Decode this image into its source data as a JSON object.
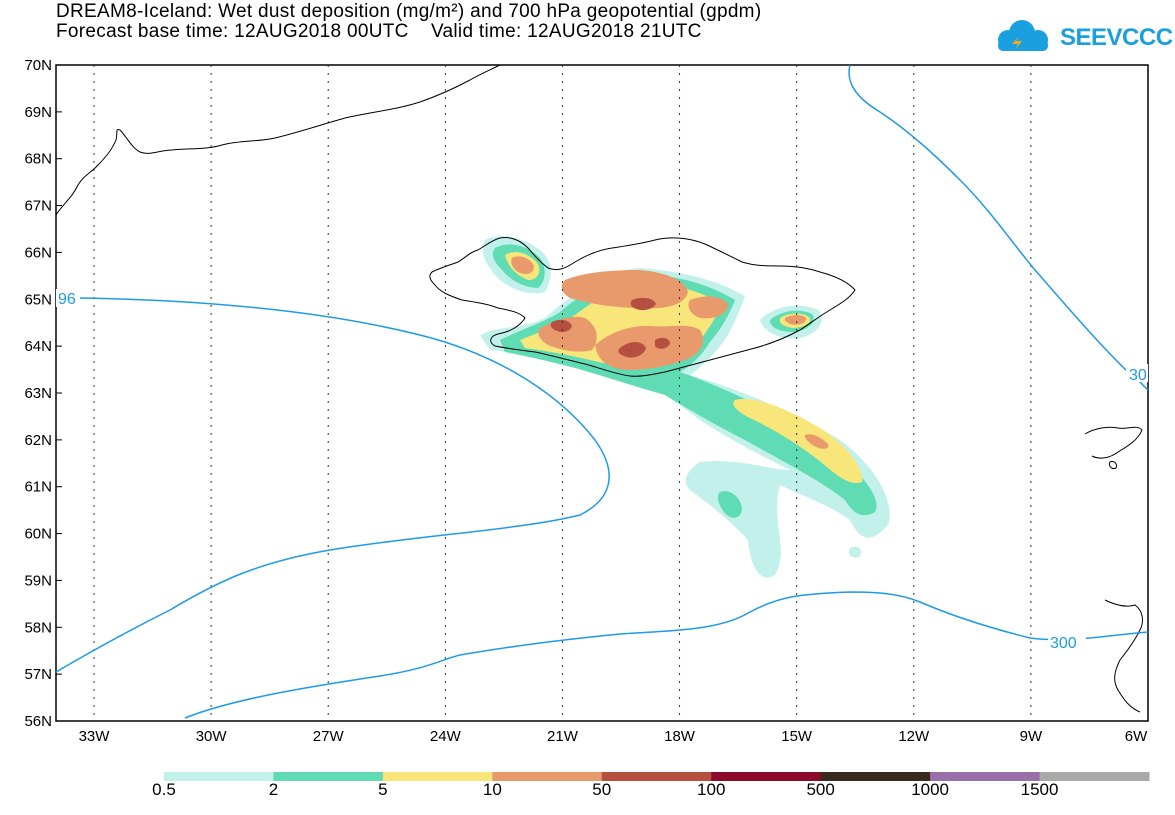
{
  "header": {
    "title_line1": "DREAM8-Iceland: Wet dust deposition (mg/m²) and 700 hPa geopotential (gpdm)",
    "title_line2": "Forecast base time: 12AUG2018 00UTC    Valid time: 12AUG2018 21UTC"
  },
  "logo": {
    "text": "SEEVCCC",
    "color": "#1aa0e0"
  },
  "axes": {
    "lat_labels": [
      "70N",
      "69N",
      "68N",
      "67N",
      "66N",
      "65N",
      "64N",
      "63N",
      "62N",
      "61N",
      "60N",
      "59N",
      "58N",
      "57N",
      "56N"
    ],
    "lon_labels": [
      "33W",
      "30W",
      "27W",
      "24W",
      "21W",
      "18W",
      "15W",
      "12W",
      "9W",
      "6W"
    ]
  },
  "contours": {
    "color": "#1e9be6",
    "labels": [
      "96",
      "30",
      "300"
    ]
  },
  "colorbar": {
    "ticks": [
      "0.5",
      "2",
      "5",
      "10",
      "50",
      "100",
      "500",
      "1000",
      "1500"
    ],
    "colors": [
      "#c2f0ea",
      "#5fdcb3",
      "#f8e67a",
      "#e89a6c",
      "#b54f3f",
      "#8c0b2c",
      "#3a2a1e",
      "#9a6ea8",
      "#a9a9a9"
    ]
  }
}
